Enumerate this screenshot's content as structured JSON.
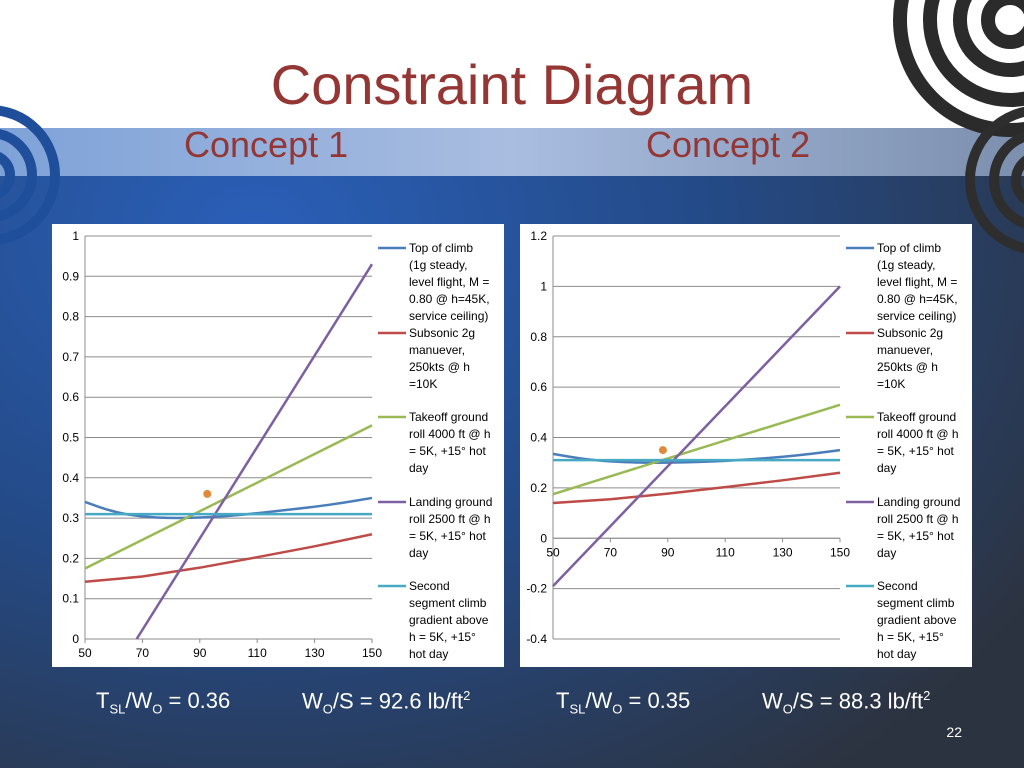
{
  "title": "Constraint Diagram",
  "concepts": [
    "Concept 1",
    "Concept 2"
  ],
  "slide_number": "22",
  "results": [
    {
      "tw_label_main": "T",
      "tw_sub1": "SL",
      "tw_mid": "/W",
      "tw_sub2": "O",
      "tw_value": " = 0.36",
      "ws_label_main": "W",
      "ws_sub": "O",
      "ws_value": "/S = 92.6 lb/ft",
      "ws_sup": "2"
    },
    {
      "tw_label_main": "T",
      "tw_sub1": "SL",
      "tw_mid": "/W",
      "tw_sub2": "O",
      "tw_value": " = 0.35",
      "ws_label_main": "W",
      "ws_sub": "O",
      "ws_value": "/S = 88.3 lb/ft",
      "ws_sup": "2"
    }
  ],
  "colors": {
    "title": "#943634",
    "top_of_climb": "#4a7ebb",
    "subsonic": "#be4b48",
    "takeoff": "#98b954",
    "landing": "#7d60a0",
    "second_segment": "#46aac5",
    "design_point": "#e08a3c"
  },
  "chart_data": [
    {
      "type": "line",
      "xlim": [
        50,
        150
      ],
      "ylim": [
        0,
        1
      ],
      "xticks": [
        "50",
        "70",
        "90",
        "110",
        "130",
        "150"
      ],
      "yticks": [
        "0",
        "0.1",
        "0.2",
        "0.3",
        "0.4",
        "0.5",
        "0.6",
        "0.7",
        "0.8",
        "0.9",
        "1"
      ],
      "grid": true,
      "legend_position": "right",
      "series": [
        {
          "name": "Top of climb (1g steady, level flight, M = 0.80 @ h=45K, service ceiling)",
          "color_key": "top_of_climb",
          "x": [
            50,
            60,
            70,
            80,
            90,
            100,
            110,
            120,
            130,
            140,
            150
          ],
          "y": [
            0.34,
            0.315,
            0.303,
            0.3,
            0.301,
            0.305,
            0.312,
            0.32,
            0.328,
            0.338,
            0.35
          ]
        },
        {
          "name": "Subsonic 2g manuever, 250kts @ h =10K",
          "color_key": "subsonic",
          "x": [
            50,
            70,
            90,
            110,
            130,
            150
          ],
          "y": [
            0.142,
            0.155,
            0.177,
            0.203,
            0.23,
            0.26
          ]
        },
        {
          "name": "Takeoff ground roll 4000 ft @ h = 5K, +15° hot day",
          "color_key": "takeoff",
          "x": [
            50,
            150
          ],
          "y": [
            0.175,
            0.53
          ]
        },
        {
          "name": "Landing ground roll 2500 ft @ h = 5K, +15° hot day",
          "color_key": "landing",
          "x": [
            68,
            150
          ],
          "y": [
            0,
            0.93
          ]
        },
        {
          "name": "Second segment climb gradient above h = 5K, +15° hot day",
          "color_key": "second_segment",
          "x": [
            50,
            150
          ],
          "y": [
            0.31,
            0.31
          ]
        }
      ],
      "design_point": {
        "x": 92.6,
        "y": 0.36
      }
    },
    {
      "type": "line",
      "xlim": [
        50,
        150
      ],
      "ylim": [
        -0.4,
        1.2
      ],
      "xticks": [
        "50",
        "70",
        "90",
        "110",
        "130",
        "150"
      ],
      "yticks": [
        "-0.4",
        "-0.2",
        "0",
        "0.2",
        "0.4",
        "0.6",
        "0.8",
        "1",
        "1.2"
      ],
      "grid": true,
      "legend_position": "right",
      "series": [
        {
          "name": "Top of climb (1g steady, level flight, M = 0.80 @ h=45K, service ceiling)",
          "color_key": "top_of_climb",
          "x": [
            50,
            60,
            70,
            80,
            90,
            100,
            110,
            120,
            130,
            140,
            150
          ],
          "y": [
            0.335,
            0.315,
            0.304,
            0.3,
            0.3,
            0.302,
            0.307,
            0.314,
            0.323,
            0.335,
            0.35
          ]
        },
        {
          "name": "Subsonic 2g manuever, 250kts @ h =10K",
          "color_key": "subsonic",
          "x": [
            50,
            70,
            90,
            110,
            130,
            150
          ],
          "y": [
            0.14,
            0.155,
            0.177,
            0.203,
            0.23,
            0.26
          ]
        },
        {
          "name": "Takeoff ground roll 4000 ft @ h = 5K, +15° hot day",
          "color_key": "takeoff",
          "x": [
            50,
            150
          ],
          "y": [
            0.175,
            0.53
          ]
        },
        {
          "name": "Landing ground roll 2500 ft @ h = 5K, +15° hot day",
          "color_key": "landing",
          "x": [
            50,
            150
          ],
          "y": [
            -0.19,
            1.0
          ]
        },
        {
          "name": "Second segment climb gradient above h = 5K, +15° hot day",
          "color_key": "second_segment",
          "x": [
            50,
            150
          ],
          "y": [
            0.31,
            0.31
          ]
        }
      ],
      "design_point": {
        "x": 88.3,
        "y": 0.35
      }
    }
  ],
  "legend_lines": [
    [
      "Top of climb",
      "(1g steady,",
      "level flight, M =",
      "0.80 @ h=45K,",
      "service ceiling)"
    ],
    [
      "Subsonic 2g",
      "manuever,",
      "250kts @ h",
      "=10K"
    ],
    [
      "Takeoff ground",
      "roll 4000 ft @ h",
      "= 5K, +15° hot",
      "day"
    ],
    [
      "Landing ground",
      "roll 2500 ft @ h",
      "= 5K, +15° hot",
      "day"
    ],
    [
      "Second",
      "segment climb",
      "gradient above",
      "h = 5K, +15°",
      "hot day"
    ]
  ]
}
